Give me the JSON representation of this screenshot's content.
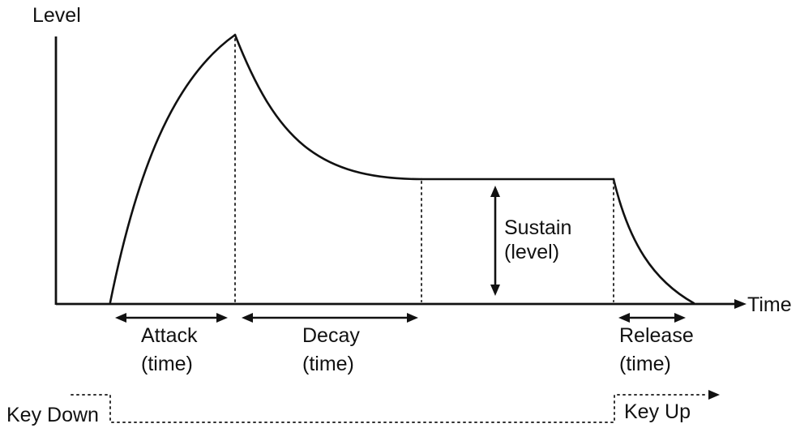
{
  "axes": {
    "y_label": "Level",
    "x_label": "Time"
  },
  "phases": {
    "attack": {
      "label": "Attack",
      "sub": "(time)"
    },
    "decay": {
      "label": "Decay",
      "sub": "(time)"
    },
    "sustain": {
      "label": "Sustain",
      "sub": "(level)"
    },
    "release": {
      "label": "Release",
      "sub": "(time)"
    }
  },
  "gate": {
    "key_down": "Key Down",
    "key_up": "Key Up"
  },
  "colors": {
    "ink": "#111111",
    "background": "#ffffff"
  }
}
